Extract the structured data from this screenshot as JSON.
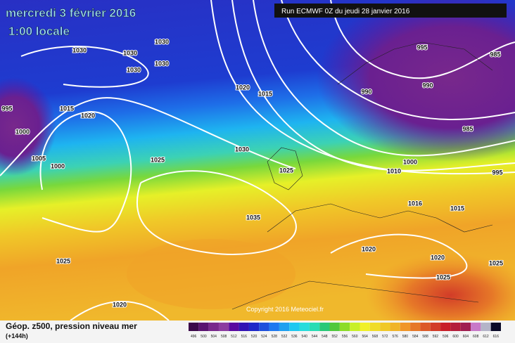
{
  "header": {
    "title": "mercredi 3 février 2016",
    "subtitle": "1:00 locale",
    "run": "Run ECMWF 0Z du jeudi 28 janvier 2016"
  },
  "copyright": "Copyright 2016 Meteociel.fr",
  "legend": {
    "title": "Géop. z500, pression niveau mer",
    "subtitle": "(+144h)"
  },
  "colorbar": {
    "labels": [
      496,
      500,
      504,
      508,
      512,
      516,
      520,
      524,
      528,
      532,
      536,
      540,
      544,
      548,
      552,
      556,
      560,
      564,
      568,
      572,
      576,
      580,
      584,
      588,
      592,
      596,
      600,
      604,
      608,
      612,
      616
    ],
    "colors": [
      "#3c0a4a",
      "#5a1470",
      "#78288c",
      "#8c3ca0",
      "#5a0aa0",
      "#3214b4",
      "#1e28c8",
      "#1e50dc",
      "#1e78f0",
      "#1ea0f0",
      "#1ec8f0",
      "#28dcdc",
      "#28dcb4",
      "#28c878",
      "#50c83c",
      "#8cdc28",
      "#c8f028",
      "#f0f028",
      "#f0dc28",
      "#f0c828",
      "#f0b428",
      "#f09628",
      "#e67828",
      "#dc5a28",
      "#d23c28",
      "#c81e28",
      "#b41e3c",
      "#a01e50",
      "#c878c8",
      "#b4b4c8",
      "#0a0a28"
    ]
  },
  "isobar_labels": [
    "1030",
    "1030",
    "1030",
    "1030",
    "1030",
    "995",
    "1015",
    "1020",
    "1000",
    "1005",
    "1000",
    "1025",
    "1020",
    "1015",
    "1030",
    "1025",
    "1035",
    "995",
    "985",
    "990",
    "990",
    "985",
    "1000",
    "1010",
    "995",
    "1016",
    "1015",
    "1020",
    "1020",
    "1025",
    "1025",
    "1025",
    "1020"
  ]
}
